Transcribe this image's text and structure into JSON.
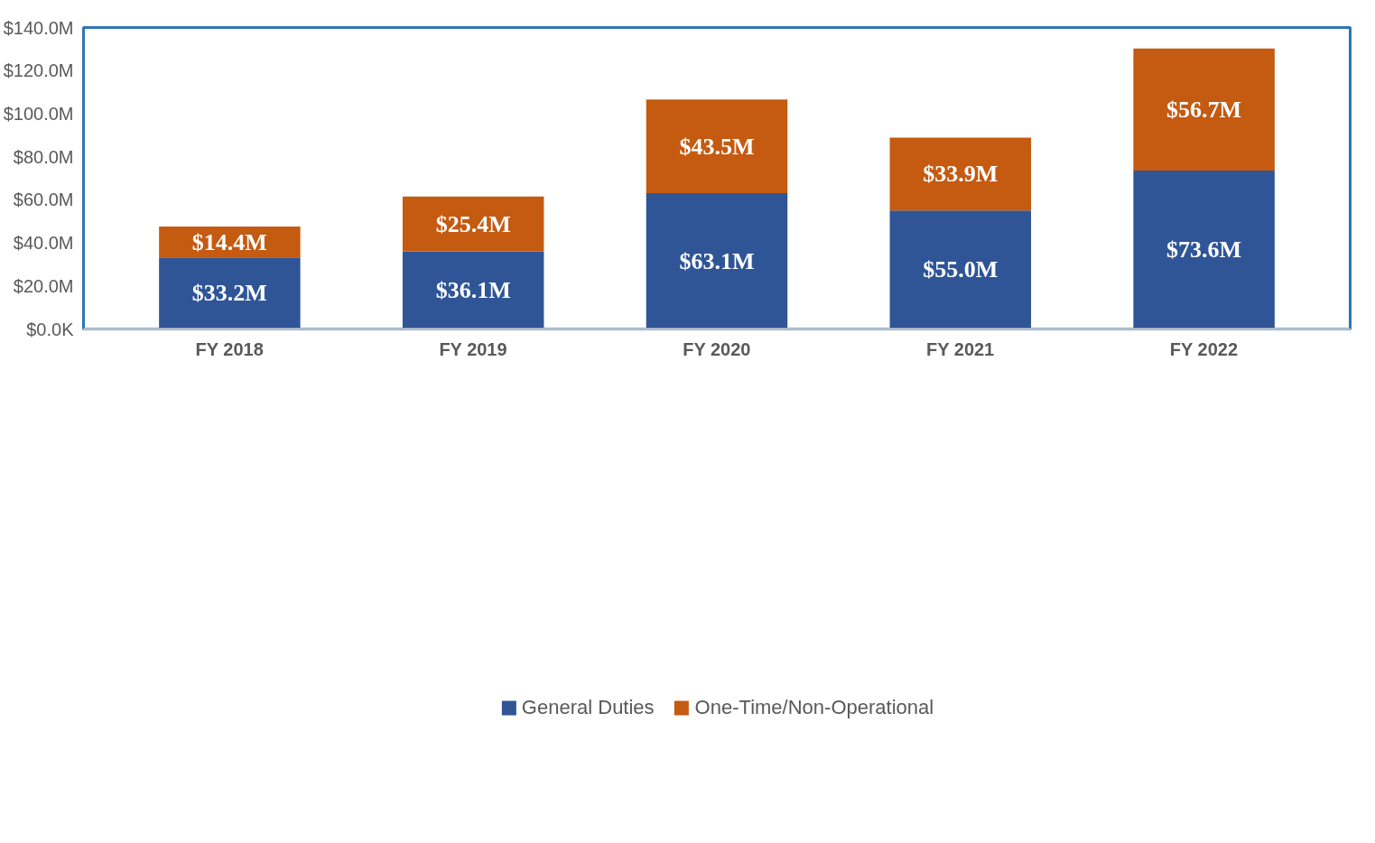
{
  "chart_data": {
    "type": "bar",
    "stacked": true,
    "categories": [
      "FY 2018",
      "FY 2019",
      "FY 2020",
      "FY 2021",
      "FY 2022"
    ],
    "series": [
      {
        "name": "General Duties",
        "color": "#2f5597",
        "values": [
          33.2,
          36.1,
          63.1,
          55.0,
          73.6
        ],
        "value_labels": [
          "$33.2M",
          "$36.1M",
          "$63.1M",
          "$55.0M",
          "$73.6M"
        ]
      },
      {
        "name": "One-Time/Non-Operational",
        "color": "#c55a11",
        "values": [
          14.4,
          25.4,
          43.5,
          33.9,
          56.7
        ],
        "value_labels": [
          "$14.4M",
          "$25.4M",
          "$43.5M",
          "$33.9M",
          "$56.7M"
        ]
      }
    ],
    "ylim": [
      0,
      140
    ],
    "yticks": [
      {
        "value": 0,
        "label": "$0.0K"
      },
      {
        "value": 20,
        "label": "$20.0M"
      },
      {
        "value": 40,
        "label": "$40.0M"
      },
      {
        "value": 60,
        "label": "$60.0M"
      },
      {
        "value": 80,
        "label": "$80.0M"
      },
      {
        "value": 100,
        "label": "$100.0M"
      },
      {
        "value": 120,
        "label": "$120.0M"
      },
      {
        "value": 140,
        "label": "$140.0M"
      }
    ],
    "grid": false,
    "legend": "bottom"
  }
}
